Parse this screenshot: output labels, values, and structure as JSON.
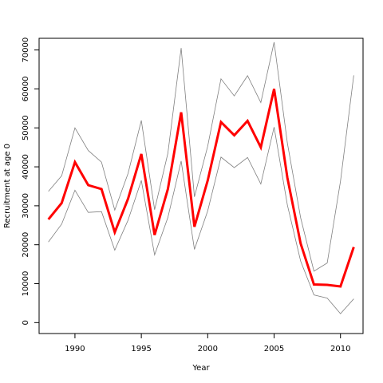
{
  "chart_data": {
    "type": "line",
    "title": "",
    "xlabel": "Year",
    "ylabel": "Recruitment at age 0",
    "xlim": [
      1987.3,
      2011.7
    ],
    "ylim": [
      -2800,
      73000
    ],
    "grid": false,
    "x_ticks": [
      1990,
      1995,
      2000,
      2005,
      2010
    ],
    "y_ticks": [
      0,
      10000,
      20000,
      30000,
      40000,
      50000,
      60000,
      70000
    ],
    "x_tick_labels": [
      "1990",
      "1995",
      "2000",
      "2005",
      "2010"
    ],
    "y_tick_labels": [
      "0",
      "10000",
      "20000",
      "30000",
      "40000",
      "50000",
      "60000",
      "70000"
    ],
    "x": [
      1988,
      1989,
      1990,
      1991,
      1992,
      1993,
      1994,
      1995,
      1996,
      1997,
      1998,
      1999,
      2000,
      2001,
      2002,
      2003,
      2004,
      2005,
      2006,
      2007,
      2008,
      2009,
      2010,
      2011
    ],
    "series": [
      {
        "role": "estimate",
        "color": "#ff0000",
        "values": [
          26500,
          30700,
          41200,
          35300,
          34300,
          23200,
          31800,
          43300,
          22500,
          34300,
          54000,
          24600,
          36500,
          51500,
          48100,
          51800,
          45000,
          60000,
          37200,
          20300,
          9800,
          9700,
          9300,
          19400
        ]
      },
      {
        "role": "upper",
        "color": "#808080",
        "values": [
          33700,
          37700,
          50000,
          44200,
          41200,
          28900,
          38300,
          51900,
          29000,
          43500,
          70500,
          32300,
          45300,
          62600,
          58200,
          63400,
          56500,
          72000,
          46100,
          26900,
          13200,
          15300,
          36300,
          63500
        ]
      },
      {
        "role": "lower",
        "color": "#808080",
        "values": [
          20700,
          25300,
          34000,
          28300,
          28500,
          18600,
          26300,
          36500,
          17400,
          27000,
          41500,
          18800,
          28700,
          42500,
          39800,
          42400,
          35600,
          50200,
          30200,
          15800,
          7100,
          6300,
          2300,
          6100
        ]
      }
    ]
  }
}
